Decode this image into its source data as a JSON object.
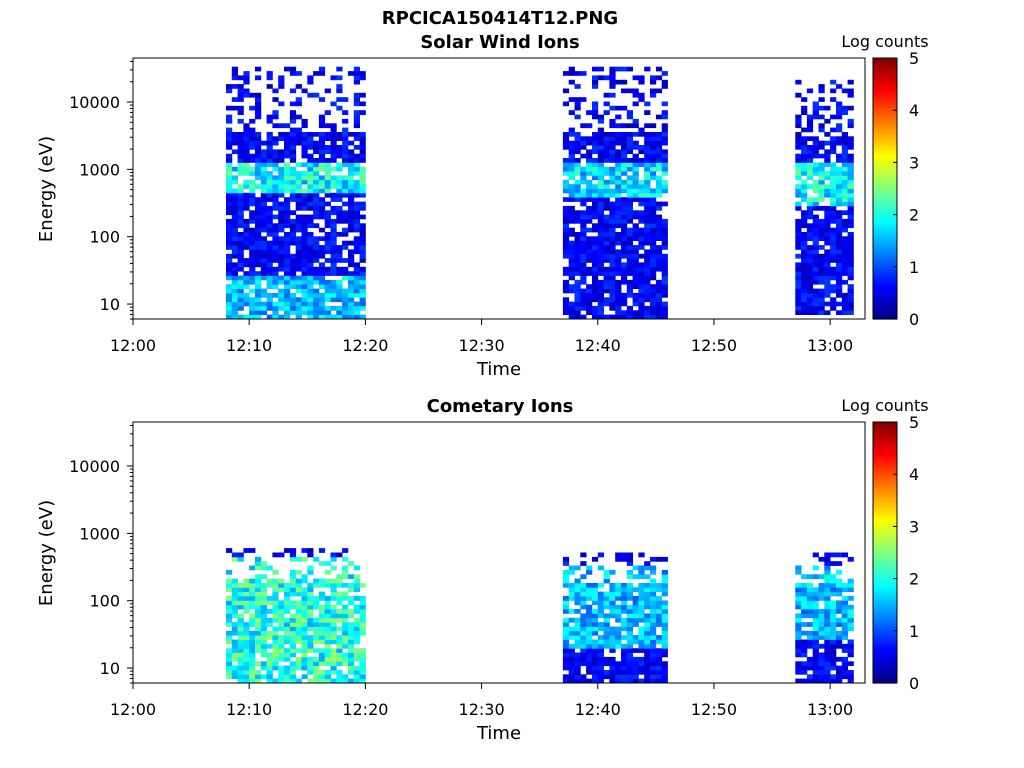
{
  "figure_title": "RPCICA150414T12.PNG",
  "colors": {
    "colormap": [
      "#00007f",
      "#0000ff",
      "#007fff",
      "#00ffff",
      "#7fff7f",
      "#ffff00",
      "#ff7f00",
      "#ff0000",
      "#7f0000"
    ],
    "frame": "#000000",
    "background": "#ffffff"
  },
  "chart_data": [
    {
      "type": "heatmap",
      "title": "Solar Wind Ions",
      "xlabel": "Time",
      "ylabel": "Energy (eV)",
      "y_scale": "log",
      "xlim": [
        "12:00",
        "13:03"
      ],
      "ylim": [
        6,
        45000
      ],
      "x_tick_labels": [
        "12:00",
        "12:10",
        "12:20",
        "12:30",
        "12:40",
        "12:50",
        "13:00"
      ],
      "y_tick_labels": [
        "10",
        "100",
        "1000",
        "10000"
      ],
      "colorbar": {
        "label": "Log counts",
        "range": [
          0,
          5
        ],
        "tick_labels": [
          "0",
          "1",
          "2",
          "3",
          "4",
          "5"
        ]
      },
      "activity_intervals": [
        {
          "start": "12:08",
          "end": "12:20",
          "emin": 6,
          "emax": 30000,
          "bands": [
            {
              "emin": 500,
              "emax": 1200,
              "level": 2.2
            },
            {
              "emin": 6,
              "emax": 25,
              "level": 1.8
            }
          ]
        },
        {
          "start": "12:37",
          "end": "12:46",
          "emin": 6,
          "emax": 30000,
          "bands": [
            {
              "emin": 400,
              "emax": 1100,
              "level": 2.0
            }
          ]
        },
        {
          "start": "12:57",
          "end": "13:02",
          "emin": 8,
          "emax": 20000,
          "bands": [
            {
              "emin": 300,
              "emax": 1200,
              "level": 2.2
            }
          ]
        }
      ]
    },
    {
      "type": "heatmap",
      "title": "Cometary Ions",
      "xlabel": "Time",
      "ylabel": "Energy (eV)",
      "y_scale": "log",
      "xlim": [
        "12:00",
        "13:03"
      ],
      "ylim": [
        6,
        45000
      ],
      "x_tick_labels": [
        "12:00",
        "12:10",
        "12:20",
        "12:30",
        "12:40",
        "12:50",
        "13:00"
      ],
      "y_tick_labels": [
        "10",
        "100",
        "1000",
        "10000"
      ],
      "colorbar": {
        "label": "Log counts",
        "range": [
          0,
          5
        ],
        "tick_labels": [
          "0",
          "1",
          "2",
          "3",
          "4",
          "5"
        ]
      },
      "activity_intervals": [
        {
          "start": "12:08",
          "end": "12:20",
          "emin": 6,
          "emax": 600,
          "bands": [
            {
              "emin": 6,
              "emax": 400,
              "level": 2.4
            }
          ]
        },
        {
          "start": "12:37",
          "end": "12:46",
          "emin": 6,
          "emax": 500,
          "bands": [
            {
              "emin": 20,
              "emax": 300,
              "level": 1.8
            }
          ]
        },
        {
          "start": "12:57",
          "end": "13:02",
          "emin": 6,
          "emax": 500,
          "bands": [
            {
              "emin": 30,
              "emax": 300,
              "level": 1.8
            }
          ]
        }
      ]
    }
  ]
}
